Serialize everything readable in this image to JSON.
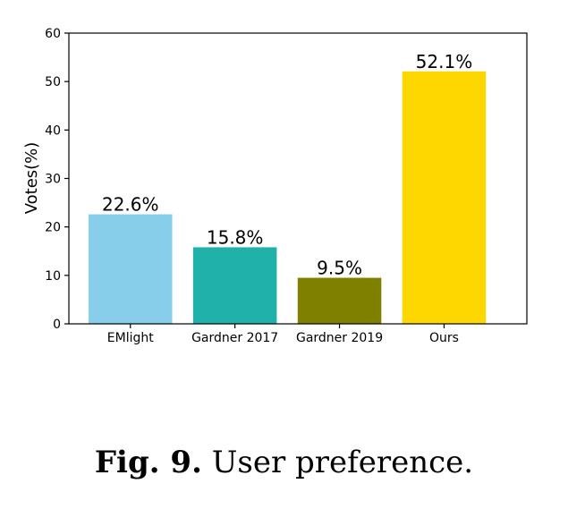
{
  "chart_data": {
    "type": "bar",
    "categories": [
      "EMlight",
      "Gardner 2017",
      "Gardner 2019",
      "Ours"
    ],
    "values": [
      22.6,
      15.8,
      9.5,
      52.1
    ],
    "data_labels": [
      "22.6%",
      "15.8%",
      "9.5%",
      "52.1%"
    ],
    "colors": [
      "#87ceeb",
      "#20b2aa",
      "#808000",
      "#ffd700"
    ],
    "title": "",
    "xlabel": "",
    "ylabel": "Votes(%)",
    "ylim": [
      0,
      60
    ],
    "yticks": [
      0,
      10,
      20,
      30,
      40,
      50,
      60
    ],
    "grid": false
  },
  "caption": {
    "label": "Fig. 9.",
    "text": "User preference."
  }
}
